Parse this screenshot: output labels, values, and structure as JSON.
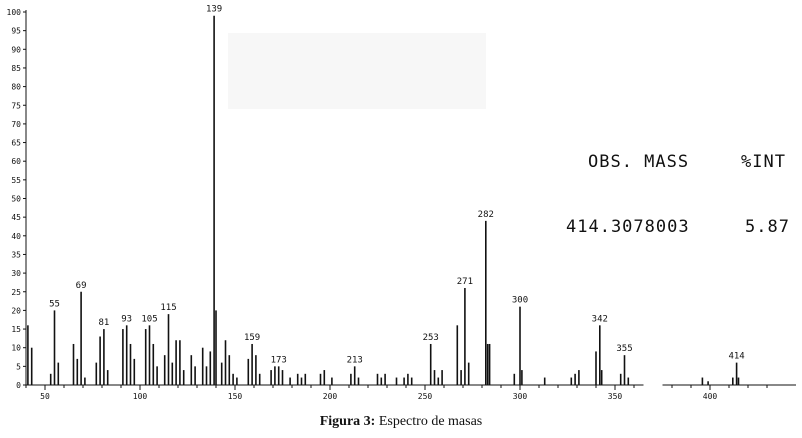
{
  "caption": {
    "label": "Figura 3:",
    "text": " Espectro de masas"
  },
  "readout": {
    "header_mass": "OBS. MASS",
    "header_int": "%INT",
    "mass_value": "414.3078003",
    "int_value": "5.87"
  },
  "chart_data": {
    "type": "bar",
    "title": "",
    "xlabel": "",
    "ylabel": "",
    "xlim": [
      40,
      430
    ],
    "ylim": [
      0,
      100
    ],
    "y_ticks": [
      0,
      5,
      10,
      15,
      20,
      25,
      30,
      35,
      40,
      45,
      50,
      55,
      60,
      65,
      70,
      75,
      80,
      85,
      90,
      95,
      100
    ],
    "y_tick_labels": [
      "0",
      "5",
      "10",
      "15",
      "20",
      "25",
      "30",
      "35",
      "40",
      "45",
      "50",
      "55",
      "60",
      "65",
      "70",
      "75",
      "80",
      "85",
      "90",
      "95",
      "100"
    ],
    "x_ticks": [
      50,
      100,
      150,
      200,
      250,
      300,
      350,
      400
    ],
    "x_tick_labels": [
      "50",
      "100",
      "150",
      "200",
      "250",
      "300",
      "350",
      "400"
    ],
    "axis_break": [
      365,
      375
    ],
    "peak_labels": [
      {
        "mz": 55,
        "label": "55"
      },
      {
        "mz": 69,
        "label": "69"
      },
      {
        "mz": 81,
        "label": "81"
      },
      {
        "mz": 93,
        "label": "93"
      },
      {
        "mz": 105,
        "label": "105"
      },
      {
        "mz": 115,
        "label": "115"
      },
      {
        "mz": 139,
        "label": "139"
      },
      {
        "mz": 159,
        "label": "159"
      },
      {
        "mz": 173,
        "label": "173"
      },
      {
        "mz": 213,
        "label": "213"
      },
      {
        "mz": 253,
        "label": "253"
      },
      {
        "mz": 271,
        "label": "271"
      },
      {
        "mz": 282,
        "label": "282"
      },
      {
        "mz": 300,
        "label": "300"
      },
      {
        "mz": 342,
        "label": "342"
      },
      {
        "mz": 355,
        "label": "355"
      },
      {
        "mz": 414,
        "label": "414"
      }
    ],
    "peaks": [
      [
        41,
        16
      ],
      [
        43,
        10
      ],
      [
        53,
        3
      ],
      [
        55,
        20
      ],
      [
        57,
        6
      ],
      [
        65,
        11
      ],
      [
        67,
        7
      ],
      [
        69,
        25
      ],
      [
        71,
        2
      ],
      [
        77,
        6
      ],
      [
        79,
        13
      ],
      [
        81,
        15
      ],
      [
        83,
        4
      ],
      [
        91,
        15
      ],
      [
        93,
        16
      ],
      [
        95,
        11
      ],
      [
        97,
        7
      ],
      [
        103,
        15
      ],
      [
        105,
        16
      ],
      [
        107,
        11
      ],
      [
        109,
        5
      ],
      [
        113,
        8
      ],
      [
        115,
        19
      ],
      [
        117,
        6
      ],
      [
        119,
        12
      ],
      [
        121,
        12
      ],
      [
        123,
        4
      ],
      [
        127,
        8
      ],
      [
        129,
        5
      ],
      [
        133,
        10
      ],
      [
        135,
        5
      ],
      [
        137,
        9
      ],
      [
        139,
        99
      ],
      [
        140,
        20
      ],
      [
        143,
        6
      ],
      [
        145,
        12
      ],
      [
        147,
        8
      ],
      [
        149,
        3
      ],
      [
        151,
        2
      ],
      [
        157,
        7
      ],
      [
        159,
        11
      ],
      [
        161,
        8
      ],
      [
        163,
        3
      ],
      [
        169,
        4
      ],
      [
        171,
        5
      ],
      [
        173,
        5
      ],
      [
        175,
        4
      ],
      [
        179,
        2
      ],
      [
        183,
        3
      ],
      [
        185,
        2
      ],
      [
        187,
        3
      ],
      [
        195,
        3
      ],
      [
        197,
        4
      ],
      [
        201,
        2
      ],
      [
        211,
        3
      ],
      [
        213,
        5
      ],
      [
        215,
        2
      ],
      [
        225,
        3
      ],
      [
        227,
        2
      ],
      [
        229,
        3
      ],
      [
        235,
        2
      ],
      [
        239,
        2
      ],
      [
        241,
        3
      ],
      [
        243,
        2
      ],
      [
        253,
        11
      ],
      [
        255,
        4
      ],
      [
        257,
        2
      ],
      [
        259,
        4
      ],
      [
        267,
        16
      ],
      [
        269,
        4
      ],
      [
        271,
        26
      ],
      [
        273,
        6
      ],
      [
        282,
        44
      ],
      [
        283,
        11
      ],
      [
        284,
        11
      ],
      [
        297,
        3
      ],
      [
        300,
        21
      ],
      [
        301,
        4
      ],
      [
        313,
        2
      ],
      [
        327,
        2
      ],
      [
        329,
        3
      ],
      [
        331,
        4
      ],
      [
        340,
        9
      ],
      [
        342,
        16
      ],
      [
        343,
        4
      ],
      [
        353,
        3
      ],
      [
        355,
        8
      ],
      [
        357,
        2
      ],
      [
        396,
        2
      ],
      [
        399,
        1
      ],
      [
        412,
        2
      ],
      [
        414,
        6
      ],
      [
        415,
        2
      ]
    ]
  }
}
